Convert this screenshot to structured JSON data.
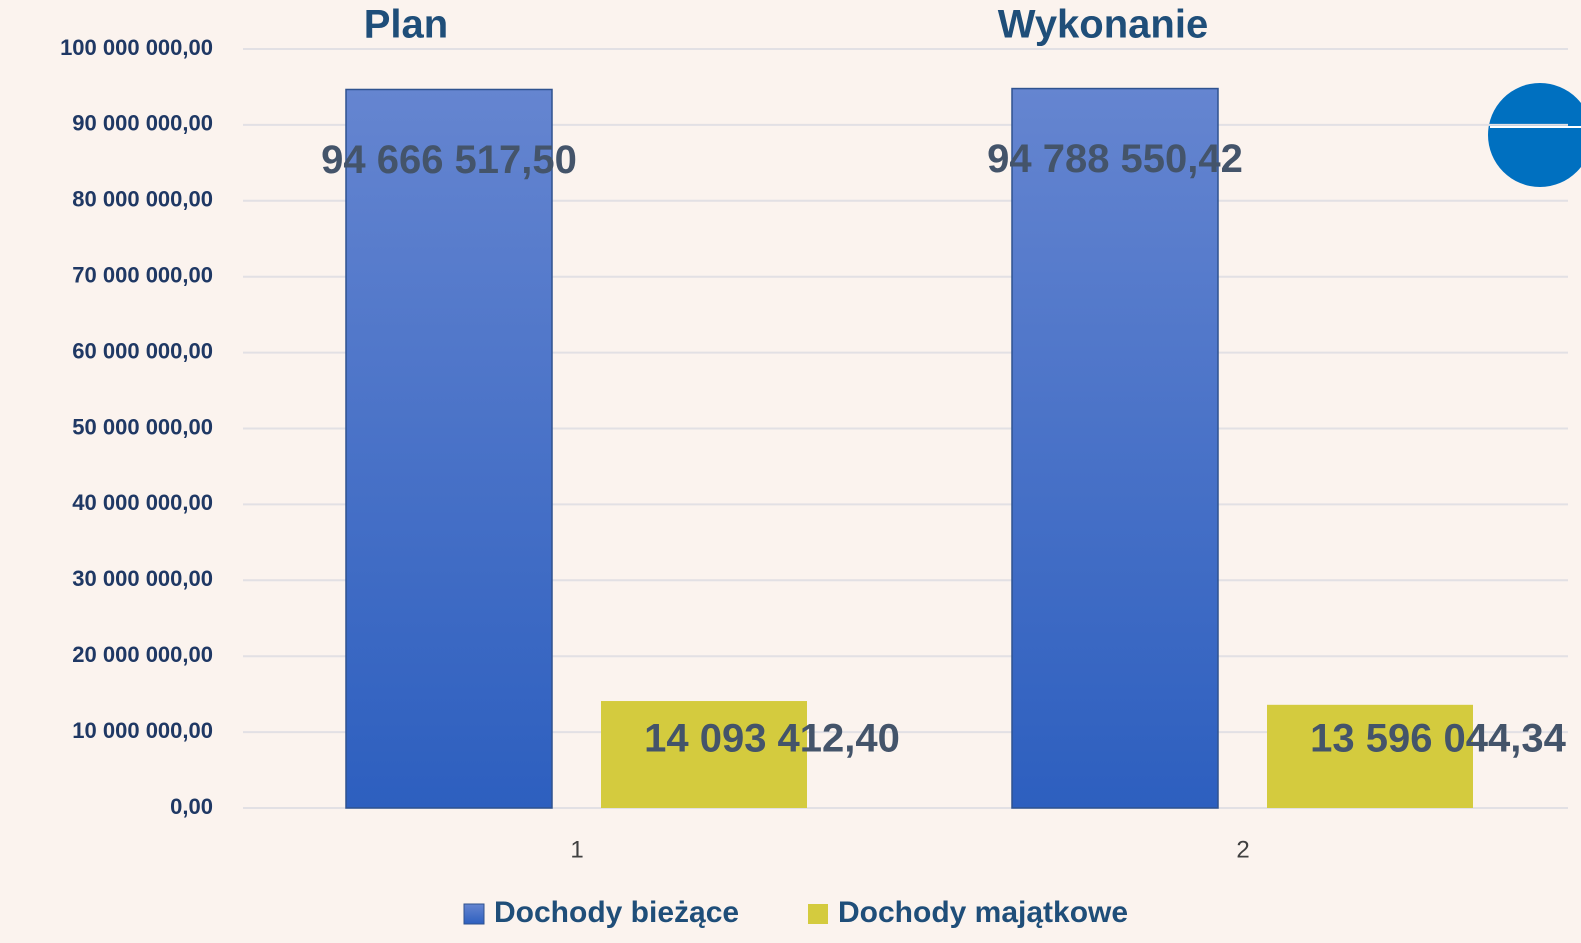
{
  "chart_data": {
    "type": "bar",
    "annotations": [
      "Plan",
      "Wykonanie"
    ],
    "categories": [
      "1",
      "2"
    ],
    "series": [
      {
        "name": "Dochody bieżące",
        "color": "#3f6cc8",
        "values": [
          94666517.5,
          94788550.42
        ],
        "value_labels": [
          "94 666 517,50",
          "94 788 550,42"
        ]
      },
      {
        "name": "Dochody majątkowe",
        "color": "#d4cb3e",
        "values": [
          14093412.4,
          13596044.34
        ],
        "value_labels": [
          "14 093 412,40",
          "13 596 044,34"
        ]
      }
    ],
    "ylim": [
      0,
      100000000
    ],
    "yticks": [
      {
        "value": 0,
        "label": "0,00"
      },
      {
        "value": 10000000,
        "label": "10 000 000,00"
      },
      {
        "value": 20000000,
        "label": "20 000 000,00"
      },
      {
        "value": 30000000,
        "label": "30 000 000,00"
      },
      {
        "value": 40000000,
        "label": "40 000 000,00"
      },
      {
        "value": 50000000,
        "label": "50 000 000,00"
      },
      {
        "value": 60000000,
        "label": "60 000 000,00"
      },
      {
        "value": 70000000,
        "label": "70 000 000,00"
      },
      {
        "value": 80000000,
        "label": "80 000 000,00"
      },
      {
        "value": 90000000,
        "label": "90 000 000,00"
      },
      {
        "value": 100000000,
        "label": "100 000 000,00"
      }
    ],
    "grid": true,
    "legend": "bottom"
  }
}
